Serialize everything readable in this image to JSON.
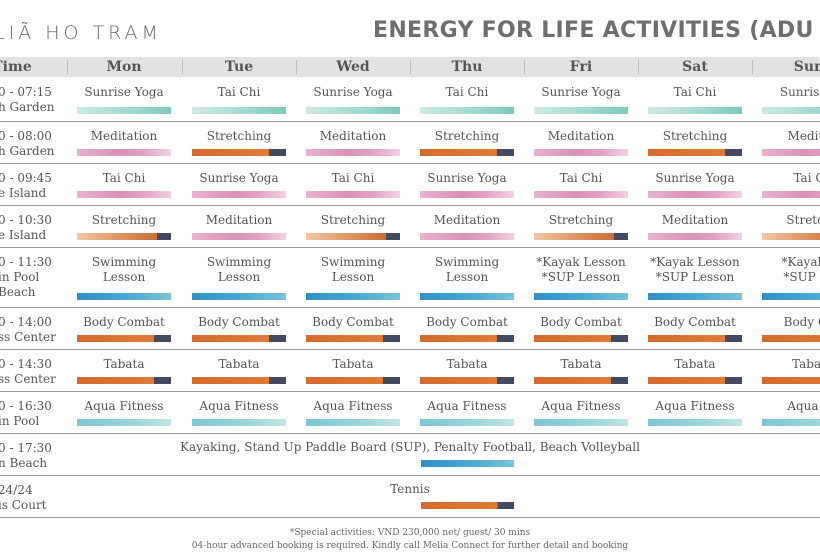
{
  "brand": "LIÃ HO TRAM",
  "title": "ENERGY FOR LIFE ACTIVITIES (ADU",
  "header": {
    "time": "Time",
    "days": [
      "Mon",
      "Tue",
      "Wed",
      "Thu",
      "Fri",
      "Sat",
      "Sun"
    ]
  },
  "colors": {
    "header_bg": "#e2e2e2",
    "mint": "#9fd8cc",
    "pink": "#d98fb7",
    "orange": "#e07b37",
    "navy": "#454a63",
    "blue": "#2e8fc7",
    "aqua": "#9cd5db"
  },
  "rows": [
    {
      "time": [
        "0 - 07:15",
        "h Garden"
      ],
      "cells": [
        {
          "label": [
            "Sunrise Yoga"
          ],
          "bar": "b-mint"
        },
        {
          "label": [
            "Tai Chi"
          ],
          "bar": "b-mint"
        },
        {
          "label": [
            "Sunrise Yoga"
          ],
          "bar": "b-mint"
        },
        {
          "label": [
            "Tai Chi"
          ],
          "bar": "b-mint"
        },
        {
          "label": [
            "Sunrise Yoga"
          ],
          "bar": "b-mint"
        },
        {
          "label": [
            "Tai Chi"
          ],
          "bar": "b-mint"
        },
        {
          "label": [
            "Sunrise Y"
          ],
          "bar": "b-mint"
        }
      ]
    },
    {
      "time": [
        "0 - 08:00",
        "h Garden"
      ],
      "cells": [
        {
          "label": [
            "Meditation"
          ],
          "bar": "b-pink"
        },
        {
          "label": [
            "Stretching"
          ],
          "bar": "b-orange"
        },
        {
          "label": [
            "Meditation"
          ],
          "bar": "b-pink"
        },
        {
          "label": [
            "Stretching"
          ],
          "bar": "b-orange"
        },
        {
          "label": [
            "Meditation"
          ],
          "bar": "b-pink"
        },
        {
          "label": [
            "Stretching"
          ],
          "bar": "b-orange"
        },
        {
          "label": [
            "Medita"
          ],
          "bar": "b-pink"
        }
      ]
    },
    {
      "time": [
        "0 - 09:45",
        "e Island"
      ],
      "cells": [
        {
          "label": [
            "Tai Chi"
          ],
          "bar": "b-pink"
        },
        {
          "label": [
            "Sunrise Yoga"
          ],
          "bar": "b-pink"
        },
        {
          "label": [
            "Tai Chi"
          ],
          "bar": "b-pink"
        },
        {
          "label": [
            "Sunrise Yoga"
          ],
          "bar": "b-pink"
        },
        {
          "label": [
            "Tai Chi"
          ],
          "bar": "b-pink"
        },
        {
          "label": [
            "Sunrise Yoga"
          ],
          "bar": "b-pink"
        },
        {
          "label": [
            "Tai C"
          ],
          "bar": "b-pink"
        }
      ]
    },
    {
      "time": [
        "0 - 10:30",
        "e Island"
      ],
      "cells": [
        {
          "label": [
            "Stretching"
          ],
          "bar": "b-peach"
        },
        {
          "label": [
            "Meditation"
          ],
          "bar": "b-pink"
        },
        {
          "label": [
            "Stretching"
          ],
          "bar": "b-peach"
        },
        {
          "label": [
            "Meditation"
          ],
          "bar": "b-pink"
        },
        {
          "label": [
            "Stretching"
          ],
          "bar": "b-peach"
        },
        {
          "label": [
            "Meditation"
          ],
          "bar": "b-pink"
        },
        {
          "label": [
            "Stretch"
          ],
          "bar": "b-peach"
        }
      ]
    },
    {
      "time": [
        "0 - 11:30",
        "in Pool",
        "Beach"
      ],
      "cells": [
        {
          "label": [
            "Swimming",
            "Lesson"
          ],
          "bar": "b-blue"
        },
        {
          "label": [
            "Swimming",
            "Lesson"
          ],
          "bar": "b-blue"
        },
        {
          "label": [
            "Swimming",
            "Lesson"
          ],
          "bar": "b-blue"
        },
        {
          "label": [
            "Swimming",
            "Lesson"
          ],
          "bar": "b-blue"
        },
        {
          "label": [
            "*Kayak Lesson",
            "*SUP Lesson"
          ],
          "bar": "b-blue"
        },
        {
          "label": [
            "*Kayak Lesson",
            "*SUP Lesson"
          ],
          "bar": "b-blue"
        },
        {
          "label": [
            "*Kayak L",
            "*SUP Le"
          ],
          "bar": "b-blue"
        }
      ]
    },
    {
      "time": [
        "0 - 14:00",
        "ss Center"
      ],
      "cells": [
        {
          "label": [
            "Body Combat"
          ],
          "bar": "b-orange"
        },
        {
          "label": [
            "Body Combat"
          ],
          "bar": "b-orange"
        },
        {
          "label": [
            "Body Combat"
          ],
          "bar": "b-orange"
        },
        {
          "label": [
            "Body Combat"
          ],
          "bar": "b-orange"
        },
        {
          "label": [
            "Body Combat"
          ],
          "bar": "b-orange"
        },
        {
          "label": [
            "Body Combat"
          ],
          "bar": "b-orange"
        },
        {
          "label": [
            "Body Co"
          ],
          "bar": "b-orange"
        }
      ]
    },
    {
      "time": [
        "0 - 14:30",
        "ss Center"
      ],
      "cells": [
        {
          "label": [
            "Tabata"
          ],
          "bar": "b-orange"
        },
        {
          "label": [
            "Tabata"
          ],
          "bar": "b-orange"
        },
        {
          "label": [
            "Tabata"
          ],
          "bar": "b-orange"
        },
        {
          "label": [
            "Tabata"
          ],
          "bar": "b-orange"
        },
        {
          "label": [
            "Tabata"
          ],
          "bar": "b-orange"
        },
        {
          "label": [
            "Tabata"
          ],
          "bar": "b-orange"
        },
        {
          "label": [
            "Tabat"
          ],
          "bar": "b-orange"
        }
      ]
    },
    {
      "time": [
        "0 - 16:30",
        "in Pool"
      ],
      "cells": [
        {
          "label": [
            "Aqua Fitness"
          ],
          "bar": "b-aqua"
        },
        {
          "label": [
            "Aqua Fitness"
          ],
          "bar": "b-aqua"
        },
        {
          "label": [
            "Aqua Fitness"
          ],
          "bar": "b-aqua"
        },
        {
          "label": [
            "Aqua Fitness"
          ],
          "bar": "b-aqua"
        },
        {
          "label": [
            "Aqua Fitness"
          ],
          "bar": "b-aqua"
        },
        {
          "label": [
            "Aqua Fitness"
          ],
          "bar": "b-aqua"
        },
        {
          "label": [
            "Aqua F"
          ],
          "bar": "b-aqua"
        }
      ]
    }
  ],
  "wide_rows": [
    {
      "time": [
        "0 - 17:30",
        "n Beach"
      ],
      "label": "Kayaking, Stand Up Paddle Board (SUP), Penalty Football, Beach Volleyball",
      "bar": "b-blue"
    },
    {
      "time": [
        "24/24",
        "is Court"
      ],
      "label": "Tennis",
      "bar": "b-orange"
    }
  ],
  "notes": [
    "*Special activities: VND 230,000 net/ guest/ 30 mins",
    "04-hour advanced booking is required. Kindly call Melia Connect for further detail and booking"
  ]
}
